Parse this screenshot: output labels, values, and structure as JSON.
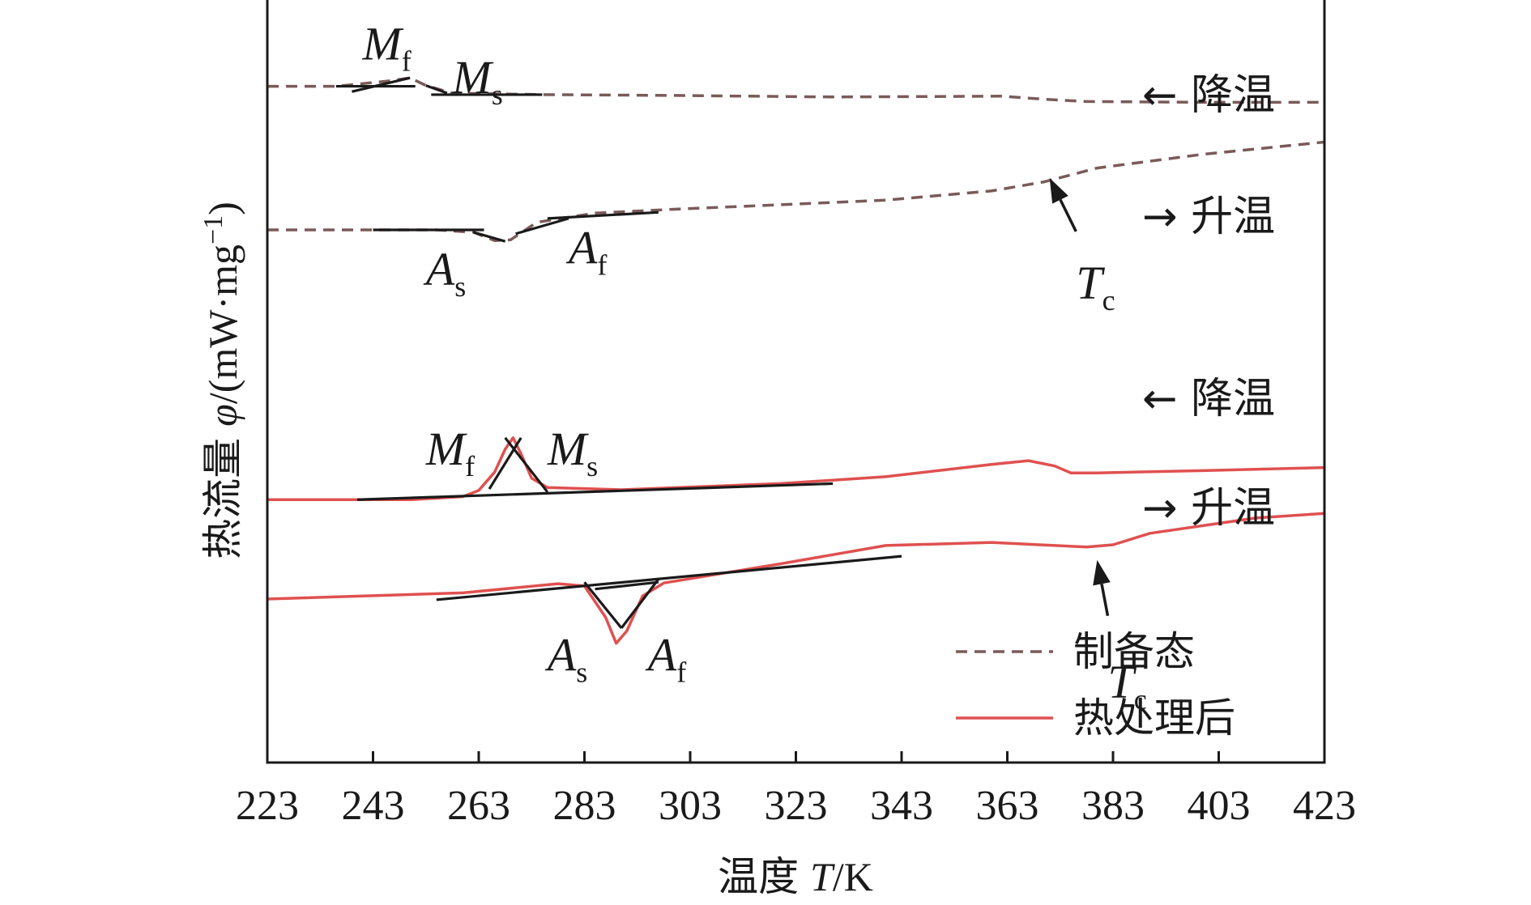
{
  "chart_data": {
    "type": "line",
    "xlabel": {
      "prefix": "温度",
      "variable": "T",
      "unit": "/K"
    },
    "ylabel": {
      "prefix": "热流量",
      "variable": "φ",
      "unit": "/(mW·mg",
      "exp": "−1",
      "suffix": ")"
    },
    "xlim": [
      223,
      423
    ],
    "x_ticks": [
      "223",
      "243",
      "263",
      "283",
      "303",
      "323",
      "343",
      "363",
      "383",
      "403",
      "423"
    ],
    "y_ticks_shown": false,
    "legend": {
      "placement": "bottom-right",
      "entries": [
        {
          "label": "制备态",
          "style": "dashed",
          "color": "#7a5a5a"
        },
        {
          "label": "热处理后",
          "style": "solid",
          "color": "#e05050"
        }
      ]
    },
    "series": [
      {
        "name": "制备态",
        "direction": "← 降温",
        "color": "#7a5a5a",
        "style": "dashed",
        "points": [
          [
            223,
            0.885
          ],
          [
            236,
            0.885
          ],
          [
            246,
            0.892
          ],
          [
            250,
            0.896
          ],
          [
            253,
            0.886
          ],
          [
            258,
            0.876
          ],
          [
            275,
            0.874
          ],
          [
            300,
            0.873
          ],
          [
            330,
            0.871
          ],
          [
            362,
            0.872
          ],
          [
            370,
            0.868
          ],
          [
            378,
            0.865
          ],
          [
            400,
            0.864
          ],
          [
            423,
            0.864
          ]
        ]
      },
      {
        "name": "制备态",
        "direction": "→ 升温",
        "color": "#7a5a5a",
        "style": "dashed",
        "points": [
          [
            223,
            0.697
          ],
          [
            240,
            0.697
          ],
          [
            255,
            0.697
          ],
          [
            262,
            0.694
          ],
          [
            266,
            0.683
          ],
          [
            269,
            0.684
          ],
          [
            274,
            0.707
          ],
          [
            285,
            0.719
          ],
          [
            300,
            0.724
          ],
          [
            320,
            0.73
          ],
          [
            340,
            0.736
          ],
          [
            360,
            0.748
          ],
          [
            370,
            0.76
          ],
          [
            380,
            0.778
          ],
          [
            400,
            0.796
          ],
          [
            423,
            0.812
          ]
        ]
      },
      {
        "name": "热处理后",
        "direction": "← 降温",
        "color": "#e05050",
        "style": "solid",
        "points": [
          [
            223,
            0.344
          ],
          [
            250,
            0.344
          ],
          [
            260,
            0.348
          ],
          [
            263,
            0.356
          ],
          [
            266,
            0.38
          ],
          [
            268,
            0.41
          ],
          [
            269.5,
            0.425
          ],
          [
            271,
            0.404
          ],
          [
            273,
            0.372
          ],
          [
            276,
            0.36
          ],
          [
            290,
            0.357
          ],
          [
            320,
            0.365
          ],
          [
            340,
            0.374
          ],
          [
            360,
            0.39
          ],
          [
            367,
            0.395
          ],
          [
            372,
            0.388
          ],
          [
            375,
            0.379
          ],
          [
            380,
            0.379
          ],
          [
            400,
            0.382
          ],
          [
            423,
            0.386
          ]
        ]
      },
      {
        "name": "热处理后",
        "direction": "→ 升温",
        "color": "#e05050",
        "style": "solid",
        "points": [
          [
            223,
            0.214
          ],
          [
            260,
            0.222
          ],
          [
            278,
            0.234
          ],
          [
            283,
            0.231
          ],
          [
            287,
            0.19
          ],
          [
            289,
            0.156
          ],
          [
            291,
            0.172
          ],
          [
            294,
            0.218
          ],
          [
            298,
            0.235
          ],
          [
            320,
            0.26
          ],
          [
            340,
            0.284
          ],
          [
            360,
            0.288
          ],
          [
            372,
            0.284
          ],
          [
            378,
            0.282
          ],
          [
            383,
            0.285
          ],
          [
            390,
            0.3
          ],
          [
            410,
            0.32
          ],
          [
            423,
            0.326
          ]
        ]
      }
    ],
    "annotations": [
      {
        "main": "M",
        "sub": "f",
        "x": 241,
        "y": 0.92
      },
      {
        "main": "M",
        "sub": "s",
        "x": 258,
        "y": 0.876
      },
      {
        "main": "A",
        "sub": "s",
        "x": 253,
        "y": 0.625
      },
      {
        "main": "A",
        "sub": "f",
        "x": 280,
        "y": 0.653
      },
      {
        "main": "T",
        "sub": "c",
        "x": 376,
        "y": 0.607
      },
      {
        "main": "M",
        "sub": "f",
        "x": 253,
        "y": 0.39
      },
      {
        "main": "M",
        "sub": "s",
        "x": 276,
        "y": 0.39
      },
      {
        "main": "A",
        "sub": "s",
        "x": 276,
        "y": 0.12
      },
      {
        "main": "A",
        "sub": "f",
        "x": 295,
        "y": 0.12
      },
      {
        "main": "T",
        "sub": "c",
        "x": 382,
        "y": 0.085
      }
    ],
    "direction_labels": [
      "← 降温",
      "→ 升温",
      "← 降温",
      "→ 升温"
    ]
  }
}
